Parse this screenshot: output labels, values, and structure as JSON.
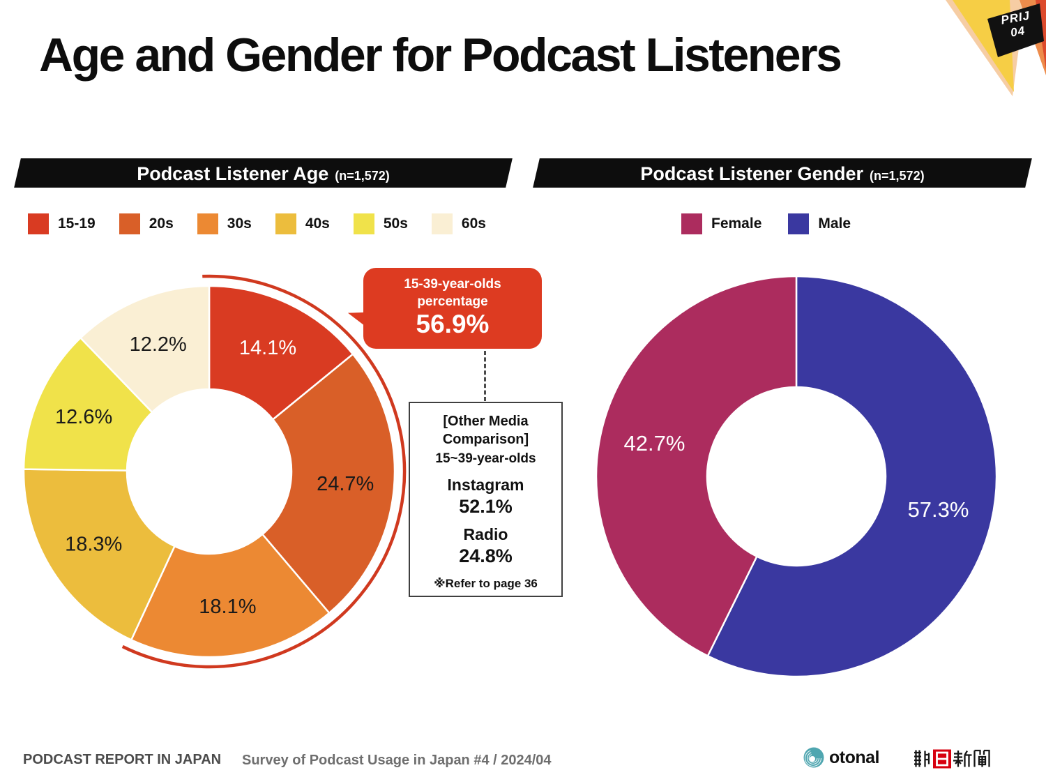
{
  "title": "Age and Gender for Podcast Listeners",
  "badge": {
    "line1": "PRIJ",
    "line2": "04"
  },
  "age_section": {
    "header": "Podcast Listener Age",
    "sample": "(n=1,572)",
    "callout": {
      "line1": "15-39-year-olds",
      "line2": "percentage",
      "value": "56.9%"
    },
    "comparison_box": {
      "title_line1": "【Other Media",
      "title_line2": "Comparison】",
      "subtitle": "15~39-year-olds",
      "item1_name": "Instagram",
      "item1_value": "52.1%",
      "item2_name": "Radio",
      "item2_value": "24.8%",
      "note": "※Refer to page 36"
    }
  },
  "gender_section": {
    "header": "Podcast Listener Gender",
    "sample": "(n=1,572)"
  },
  "footer": {
    "report_title": "PODCAST REPORT IN JAPAN",
    "survey_label": "Survey of Podcast Usage in Japan #4 / 2024/04",
    "otonal_label": "otonal",
    "asahi_label": "朝日新聞"
  },
  "chart_data": [
    {
      "type": "pie",
      "subtype": "donut",
      "title": "Podcast Listener Age (n=1,572)",
      "start_angle_deg": 0,
      "direction": "clockwise",
      "segments": [
        {
          "label": "15-19",
          "value": 14.1,
          "color": "#d93b22",
          "label_color": "#ffffff"
        },
        {
          "label": "20s",
          "value": 24.7,
          "color": "#d95f28",
          "label_color": "#1a1a1a"
        },
        {
          "label": "30s",
          "value": 18.1,
          "color": "#ec8933",
          "label_color": "#1a1a1a"
        },
        {
          "label": "40s",
          "value": 18.3,
          "color": "#ecbd3d",
          "label_color": "#1a1a1a"
        },
        {
          "label": "50s",
          "value": 12.6,
          "color": "#f0e24a",
          "label_color": "#1a1a1a"
        },
        {
          "label": "60s",
          "value": 12.2,
          "color": "#faefd4",
          "label_color": "#1a1a1a"
        }
      ],
      "legend": [
        "15-19",
        "20s",
        "30s",
        "40s",
        "50s",
        "60s"
      ],
      "legend_position": "top",
      "highlight": {
        "label": "15-39-year-olds percentage",
        "value": 56.9,
        "color": "#d0391f"
      },
      "annotation_other_media": [
        {
          "name": "Instagram",
          "value": 52.1
        },
        {
          "name": "Radio",
          "value": 24.8
        }
      ]
    },
    {
      "type": "pie",
      "subtype": "donut",
      "title": "Podcast Listener Gender (n=1,572)",
      "start_angle_deg": 0,
      "direction": "clockwise",
      "segments": [
        {
          "label": "Male",
          "value": 57.3,
          "color": "#3a38a0",
          "label_color": "#ffffff"
        },
        {
          "label": "Female",
          "value": 42.7,
          "color": "#ac2c5e",
          "label_color": "#ffffff"
        }
      ],
      "legend": [
        "Female",
        "Male"
      ],
      "legend_position": "top"
    }
  ]
}
